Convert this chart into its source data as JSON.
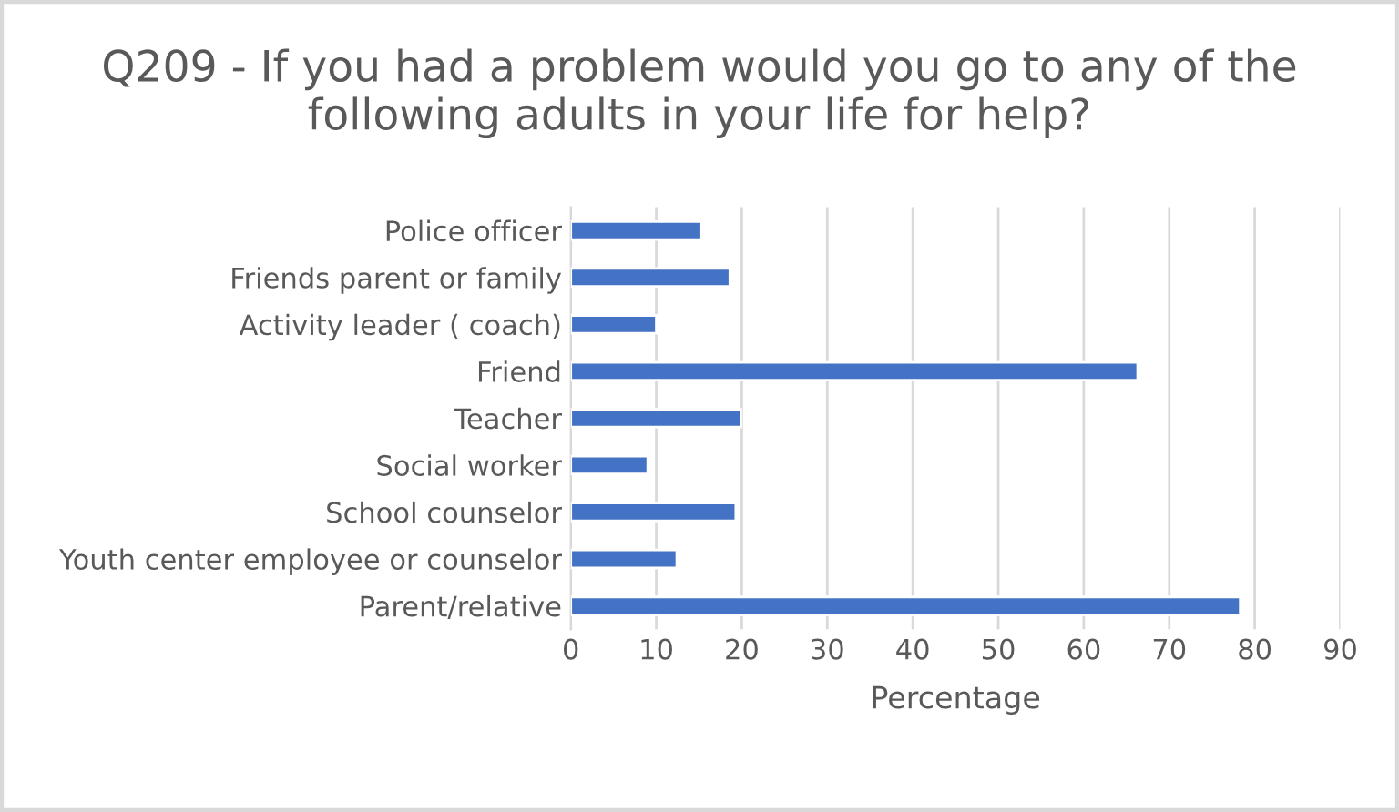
{
  "chart_data": {
    "type": "bar",
    "orientation": "horizontal",
    "title": "Q209 - If you had a problem would you go to any of the following adults in your life for help?",
    "xlabel": "Percentage",
    "categories": [
      "Police officer",
      "Friends parent or family",
      "Activity leader ( coach)",
      "Friend",
      "Teacher",
      "Social worker",
      "School counselor",
      "Youth center employee or counselor",
      "Parent/relative"
    ],
    "values": [
      15.3,
      18.6,
      10.0,
      66.3,
      19.9,
      9.0,
      19.3,
      12.4,
      78.3
    ],
    "color": "#4472c4",
    "xlim": [
      0,
      90
    ],
    "xticks": [
      0,
      10,
      20,
      30,
      40,
      50,
      60,
      70,
      80,
      90
    ],
    "grid": "x",
    "legend": false
  }
}
